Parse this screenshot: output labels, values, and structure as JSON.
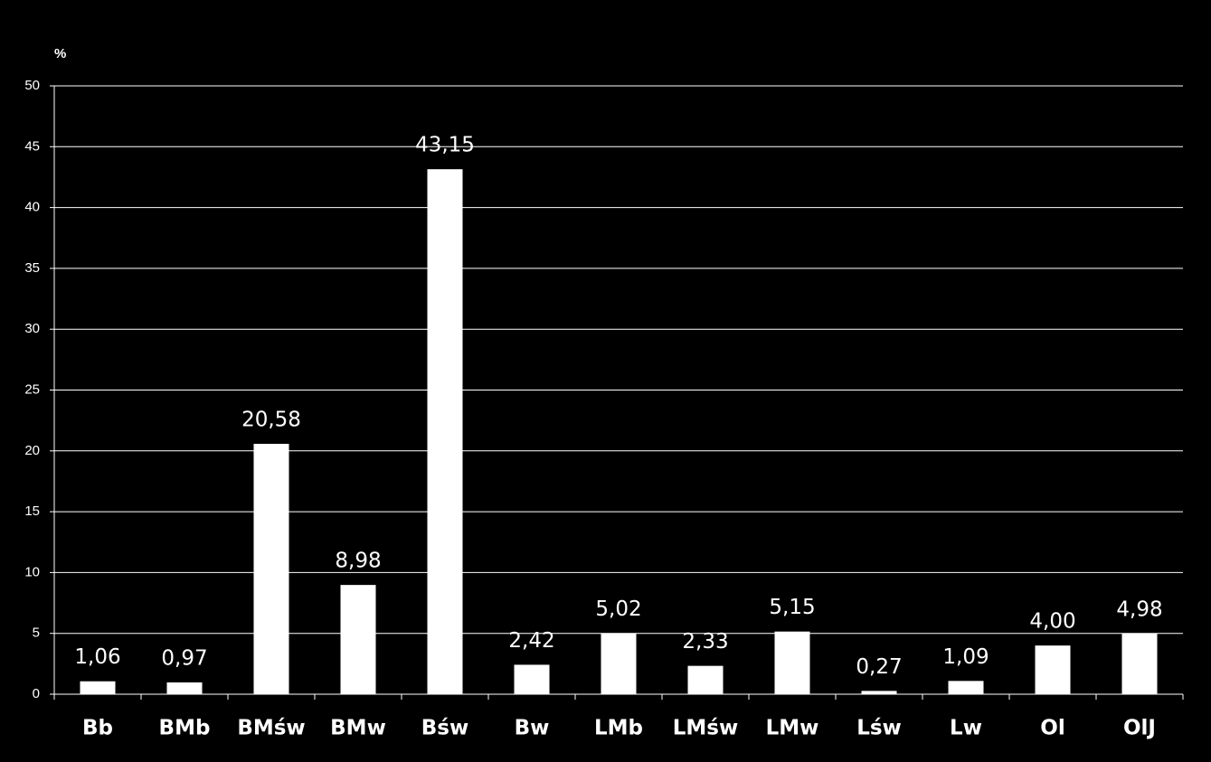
{
  "chart_data": {
    "type": "bar",
    "y_label": "%",
    "categories": [
      "Bb",
      "BMb",
      "BMśw",
      "BMw",
      "Bśw",
      "Bw",
      "LMb",
      "LMśw",
      "LMw",
      "Lśw",
      "Lw",
      "Ol",
      "OlJ"
    ],
    "values": [
      1.06,
      0.97,
      20.58,
      8.98,
      43.15,
      2.42,
      5.02,
      2.33,
      5.15,
      0.27,
      1.09,
      4.0,
      4.98
    ],
    "value_labels": [
      "1,06",
      "0,97",
      "20,58",
      "8,98",
      "43,15",
      "2,42",
      "5,02",
      "2,33",
      "5,15",
      "0,27",
      "1,09",
      "4,00",
      "4,98"
    ],
    "color": "#ffffff",
    "ylim": [
      0,
      50
    ],
    "yticks": [
      0,
      5,
      10,
      15,
      20,
      25,
      30,
      35,
      40,
      45,
      50
    ],
    "grid": true
  }
}
